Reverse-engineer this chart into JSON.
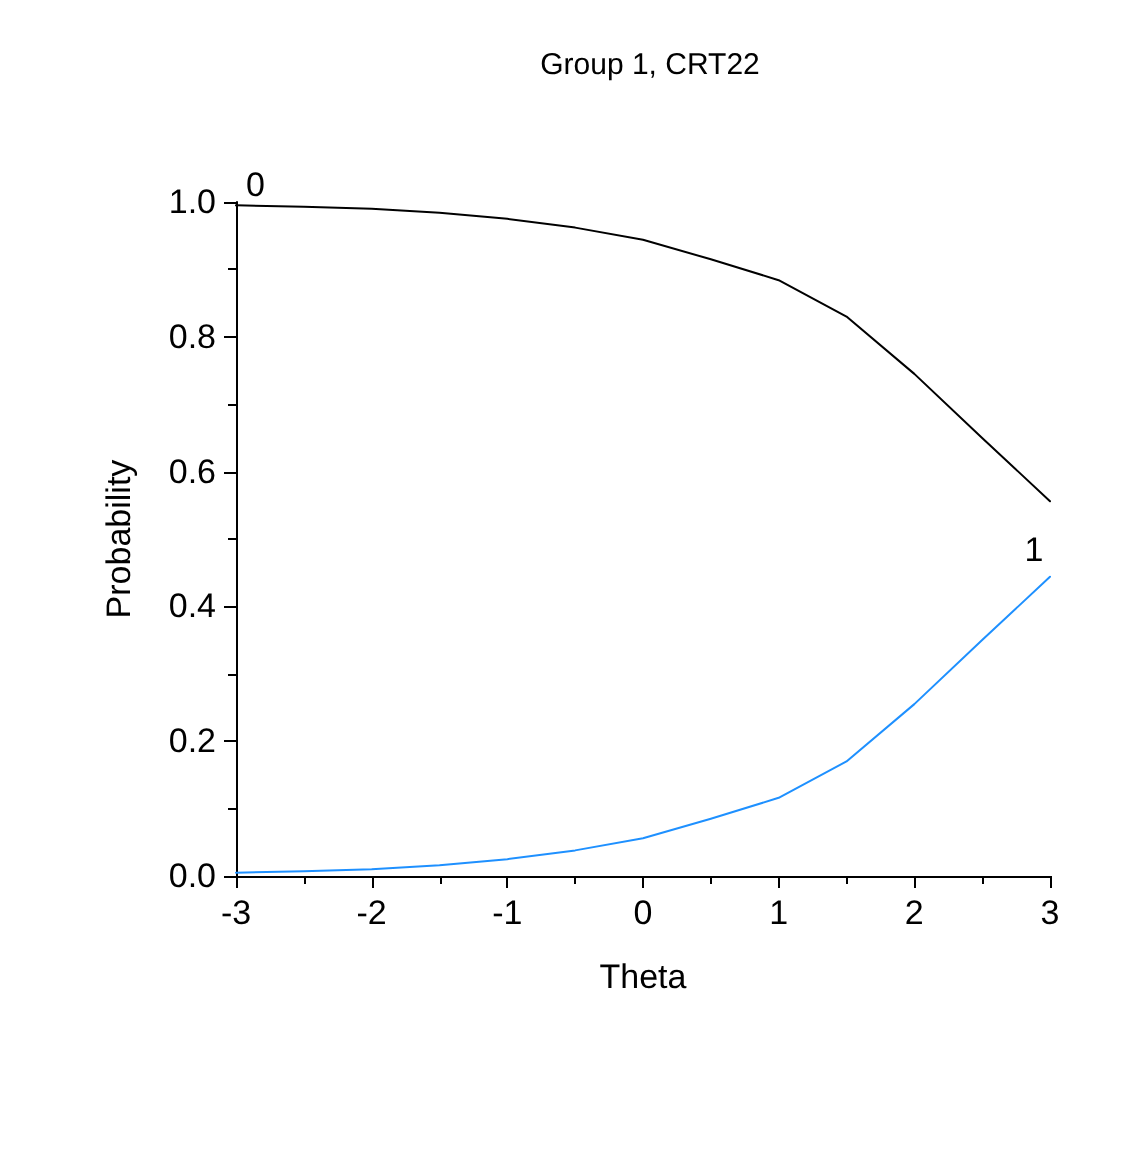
{
  "chart_data": {
    "type": "line",
    "title": "Group 1, CRT22",
    "xlabel": "Theta",
    "ylabel": "Probability",
    "x": [
      -3,
      -2.5,
      -2,
      -1.5,
      -1,
      -0.5,
      0,
      0.5,
      1,
      1.5,
      2,
      2.5,
      3
    ],
    "series": [
      {
        "name": "0",
        "color": "#000000",
        "values": [
          0.995,
          0.993,
          0.99,
          0.984,
          0.975,
          0.962,
          0.944,
          0.915,
          0.884,
          0.83,
          0.745,
          0.65,
          0.556
        ]
      },
      {
        "name": "1",
        "color": "#1e90ff",
        "values": [
          0.005,
          0.007,
          0.01,
          0.016,
          0.025,
          0.038,
          0.056,
          0.085,
          0.116,
          0.17,
          0.255,
          0.35,
          0.444
        ]
      }
    ],
    "xlim": [
      -3,
      3
    ],
    "xticks": [
      -3,
      -2,
      -1,
      0,
      1,
      2,
      3
    ],
    "ylim": [
      0,
      1
    ],
    "yticks": [
      {
        "value": 0,
        "label": "0.0"
      },
      {
        "value": 0.2,
        "label": "0.2"
      },
      {
        "value": 0.4,
        "label": "0.4"
      },
      {
        "value": 0.6,
        "label": "0.6"
      },
      {
        "value": 0.8,
        "label": "0.8"
      },
      {
        "value": 1,
        "label": "1.0"
      }
    ],
    "grid": false,
    "legend": false,
    "marker": "none",
    "line_style": "solid"
  }
}
